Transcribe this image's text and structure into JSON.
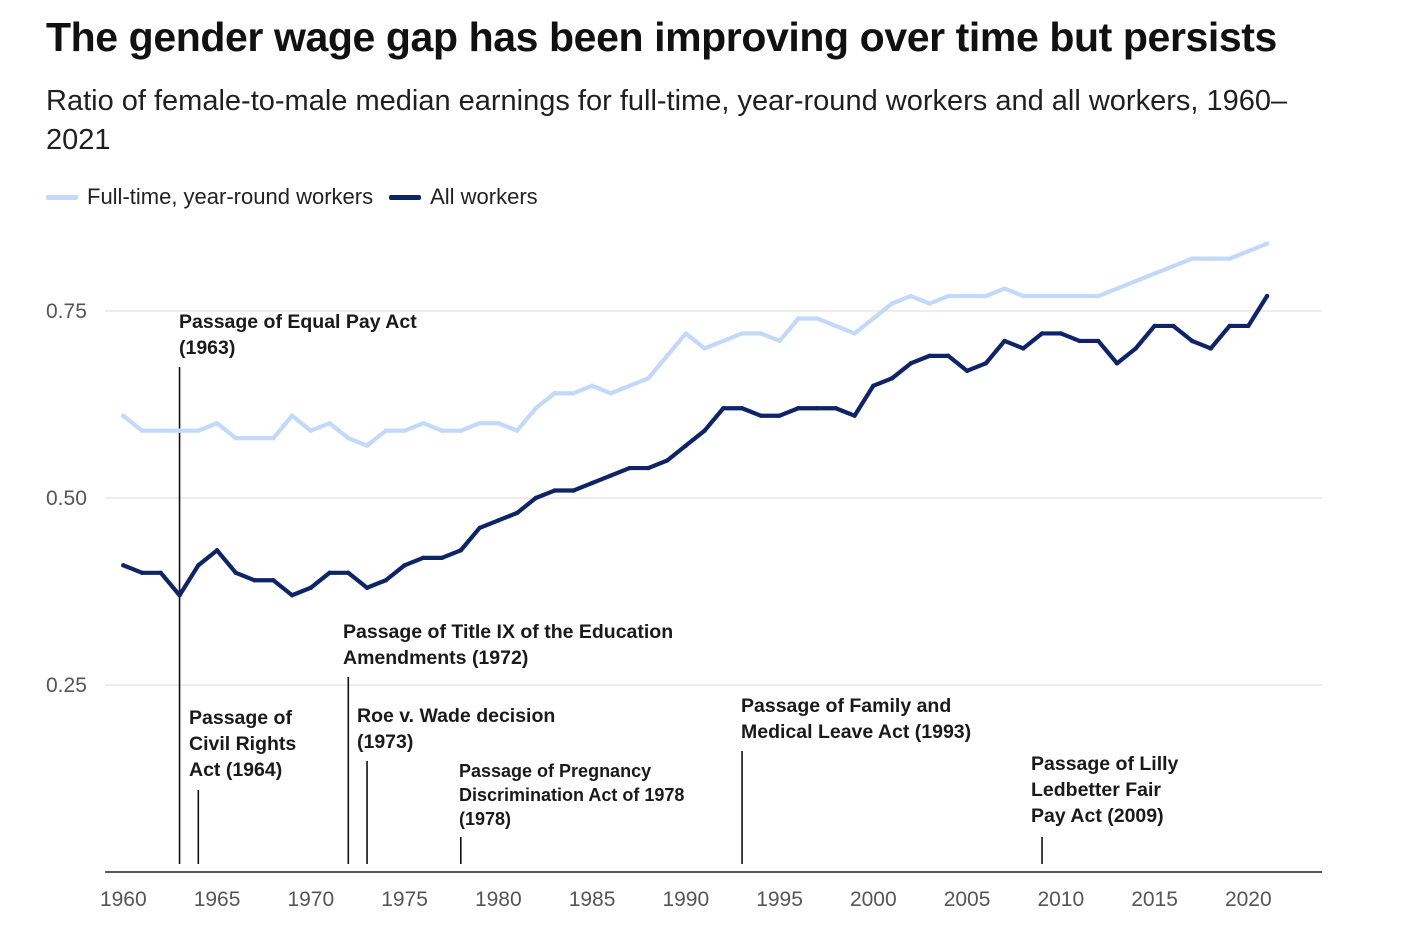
{
  "chart_data": {
    "type": "line",
    "title": "The gender wage gap has been improving over time but persists",
    "subtitle": "Ratio of female-to-male median earnings for full-time, year-round workers and all workers, 1960–2021",
    "xlabel": "",
    "ylabel": "",
    "xlim": [
      1960,
      2024
    ],
    "ylim": [
      0,
      0.85
    ],
    "grid": true,
    "legend_position": "top-left",
    "x_ticks": [
      1960,
      1965,
      1970,
      1975,
      1980,
      1985,
      1990,
      1995,
      2000,
      2005,
      2010,
      2015,
      2020
    ],
    "y_ticks": [
      {
        "value": 0.25,
        "label": "0.25"
      },
      {
        "value": 0.5,
        "label": "0.50"
      },
      {
        "value": 0.75,
        "label": "0.75"
      }
    ],
    "x": [
      1960,
      1961,
      1962,
      1963,
      1964,
      1965,
      1966,
      1967,
      1968,
      1969,
      1970,
      1971,
      1972,
      1973,
      1974,
      1975,
      1976,
      1977,
      1978,
      1979,
      1980,
      1981,
      1982,
      1983,
      1984,
      1985,
      1986,
      1987,
      1988,
      1989,
      1990,
      1991,
      1992,
      1993,
      1994,
      1995,
      1996,
      1997,
      1998,
      1999,
      2000,
      2001,
      2002,
      2003,
      2004,
      2005,
      2006,
      2007,
      2008,
      2009,
      2010,
      2011,
      2012,
      2013,
      2014,
      2015,
      2016,
      2017,
      2018,
      2019,
      2020,
      2021
    ],
    "series": [
      {
        "name": "Full-time, year-round workers",
        "color": "#c3d9fb",
        "values": [
          0.61,
          0.59,
          0.59,
          0.59,
          0.59,
          0.6,
          0.58,
          0.58,
          0.58,
          0.61,
          0.59,
          0.6,
          0.58,
          0.57,
          0.59,
          0.59,
          0.6,
          0.59,
          0.59,
          0.6,
          0.6,
          0.59,
          0.62,
          0.64,
          0.64,
          0.65,
          0.64,
          0.65,
          0.66,
          0.69,
          0.72,
          0.7,
          0.71,
          0.72,
          0.72,
          0.71,
          0.74,
          0.74,
          0.73,
          0.72,
          0.74,
          0.76,
          0.77,
          0.76,
          0.77,
          0.77,
          0.77,
          0.78,
          0.77,
          0.77,
          0.77,
          0.77,
          0.77,
          0.78,
          0.79,
          0.8,
          0.81,
          0.82,
          0.82,
          0.82,
          0.83,
          0.84
        ]
      },
      {
        "name": "All workers",
        "color": "#0e2466",
        "values": [
          0.41,
          0.4,
          0.4,
          0.37,
          0.41,
          0.43,
          0.4,
          0.39,
          0.39,
          0.37,
          0.38,
          0.4,
          0.4,
          0.38,
          0.39,
          0.41,
          0.42,
          0.42,
          0.43,
          0.46,
          0.47,
          0.48,
          0.5,
          0.51,
          0.51,
          0.52,
          0.53,
          0.54,
          0.54,
          0.55,
          0.57,
          0.59,
          0.62,
          0.62,
          0.61,
          0.61,
          0.62,
          0.62,
          0.62,
          0.61,
          0.65,
          0.66,
          0.68,
          0.69,
          0.69,
          0.67,
          0.68,
          0.71,
          0.7,
          0.72,
          0.72,
          0.71,
          0.71,
          0.68,
          0.7,
          0.73,
          0.73,
          0.71,
          0.7,
          0.73,
          0.73,
          0.77
        ]
      }
    ],
    "annotations": [
      {
        "year": 1963,
        "lines": [
          "Passage of Equal Pay Act",
          "(1963)"
        ]
      },
      {
        "year": 1964,
        "lines": [
          "Passage of",
          "Civil Rights",
          "Act (1964)"
        ]
      },
      {
        "year": 1972,
        "lines": [
          "Passage of Title IX of the Education",
          "Amendments (1972)"
        ]
      },
      {
        "year": 1973,
        "lines": [
          "Roe v. Wade decision",
          "(1973)"
        ]
      },
      {
        "year": 1978,
        "lines": [
          "Passage of Pregnancy",
          "Discrimination Act of 1978",
          "(1978)"
        ]
      },
      {
        "year": 1993,
        "lines": [
          "Passage of Family and",
          "Medical Leave Act (1993)"
        ]
      },
      {
        "year": 2009,
        "lines": [
          "Passage of Lilly",
          "Ledbetter Fair",
          "Pay Act (2009)"
        ]
      }
    ]
  }
}
